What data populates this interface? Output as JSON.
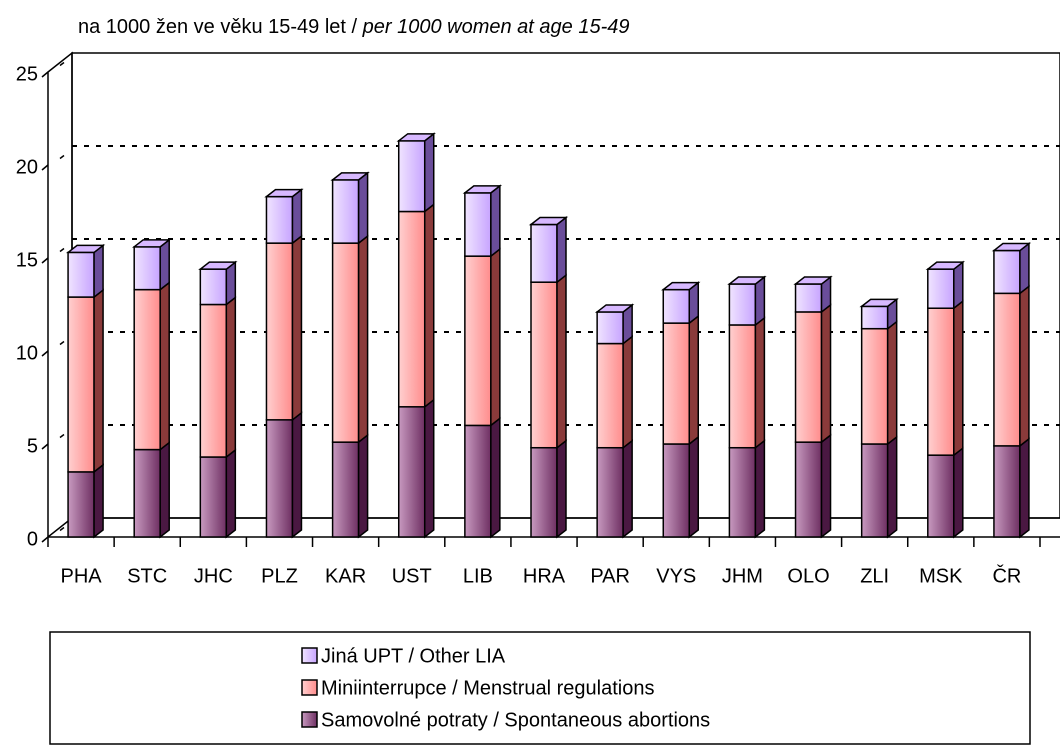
{
  "chart_data": {
    "type": "bar3d_stacked",
    "subtitle": [
      "na 1000 žen ve věku 15-49 let / ",
      "per 1000 women at age 15-49"
    ],
    "categories": [
      "PHA",
      "STC",
      "JHC",
      "PLZ",
      "KAR",
      "UST",
      "LIB",
      "HRA",
      "PAR",
      "VYS",
      "JHM",
      "OLO",
      "ZLI",
      "MSK",
      "ČR"
    ],
    "series": [
      {
        "name": "Samovolné potraty / Spontaneous abortions",
        "color": "#9a5a8c",
        "values": [
          3.5,
          4.7,
          4.3,
          6.3,
          5.1,
          7.0,
          6.0,
          4.8,
          4.8,
          5.0,
          4.8,
          5.1,
          5.0,
          4.4,
          4.9
        ]
      },
      {
        "name": "Miniinterrupce / Menstrual regulations",
        "color": "#ff9f9f",
        "values": [
          9.4,
          8.6,
          8.2,
          9.5,
          10.7,
          10.5,
          9.1,
          8.9,
          5.6,
          6.5,
          6.6,
          7.0,
          6.2,
          7.9,
          8.2
        ]
      },
      {
        "name": "Jiná UPT / Other LIA",
        "color": "#d7b8ff",
        "values": [
          2.4,
          2.3,
          1.9,
          2.5,
          3.4,
          3.8,
          3.4,
          3.1,
          1.7,
          1.8,
          2.2,
          1.5,
          1.2,
          2.1,
          2.3
        ]
      }
    ],
    "ylim": [
      0,
      25
    ],
    "yticks": [
      0,
      5,
      10,
      15,
      20,
      25
    ],
    "grid": true
  }
}
